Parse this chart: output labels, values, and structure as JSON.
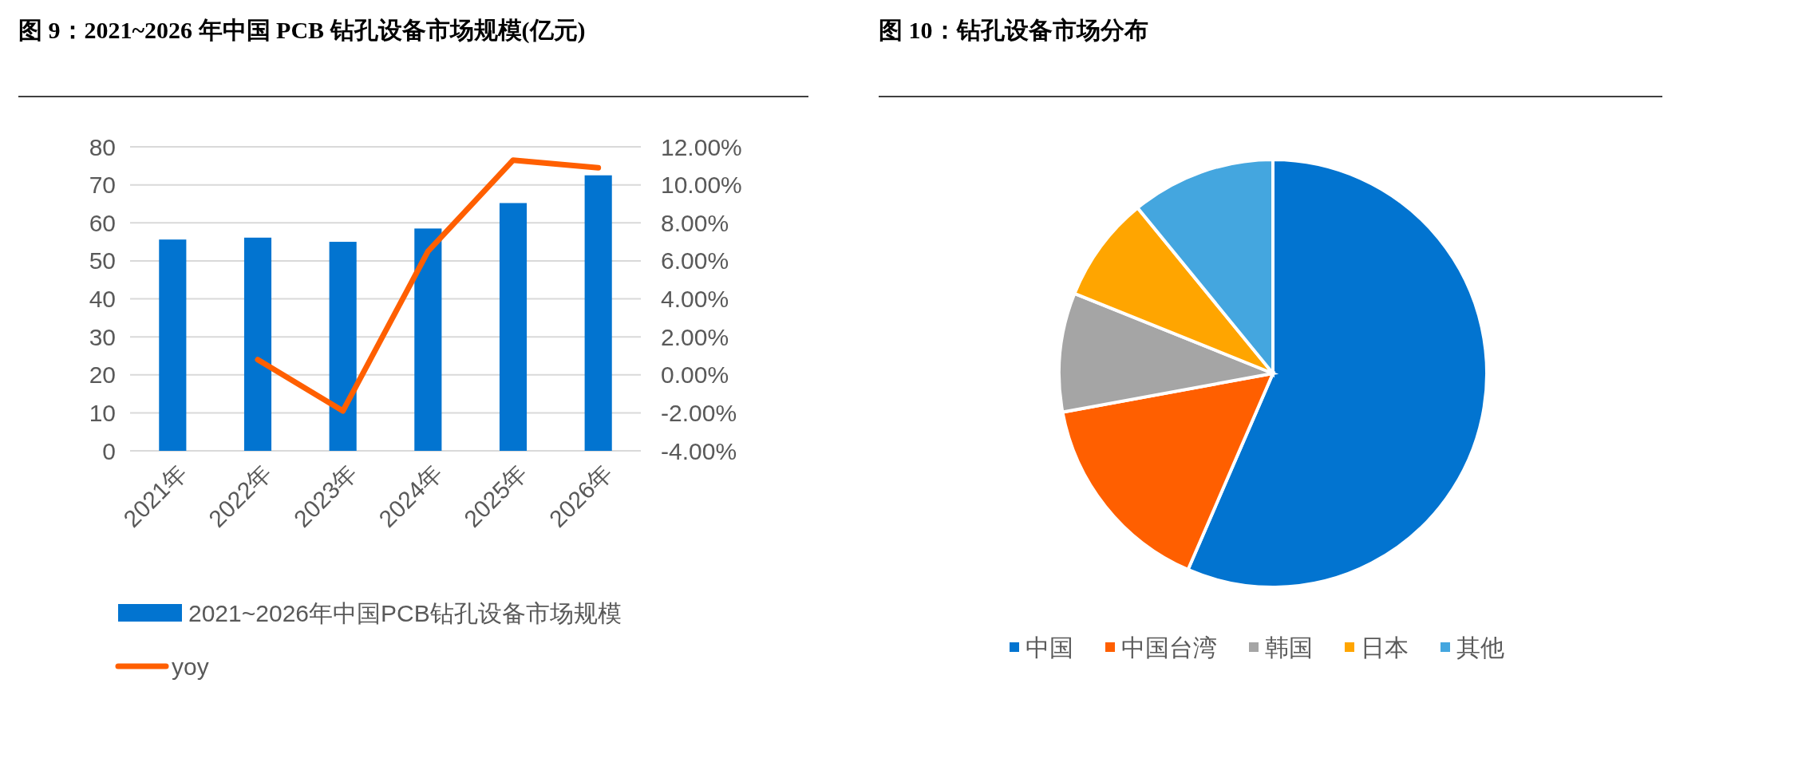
{
  "chart_data": [
    {
      "type": "bar",
      "title": "图 9：2021~2026 年中国 PCB 钻孔设备市场规模(亿元)",
      "categories": [
        "2021年",
        "2022年",
        "2023年",
        "2024年",
        "2025年",
        "2026年"
      ],
      "series": [
        {
          "name": "2021~2026年中国PCB钻孔设备市场规模",
          "color": "#0274d0",
          "values": [
            55.6,
            56.1,
            55.0,
            58.5,
            65.2,
            72.5
          ]
        },
        {
          "name": "yoy",
          "type": "line",
          "axis": "y2",
          "color": "#ff5f00",
          "values": [
            null,
            0.8,
            -1.9,
            6.5,
            11.3,
            10.9
          ]
        }
      ],
      "ylim": [
        0,
        80
      ],
      "yticks": [
        0,
        10,
        20,
        30,
        40,
        50,
        60,
        70,
        80
      ],
      "y2lim": [
        -4,
        12
      ],
      "y2ticks": [
        {
          "value": -4,
          "label": "-4.00%"
        },
        {
          "value": -2,
          "label": "-2.00%"
        },
        {
          "value": 0,
          "label": "0.00%"
        },
        {
          "value": 2,
          "label": "2.00%"
        },
        {
          "value": 4,
          "label": "4.00%"
        },
        {
          "value": 6,
          "label": "6.00%"
        },
        {
          "value": 8,
          "label": "8.00%"
        },
        {
          "value": 10,
          "label": "10.00%"
        },
        {
          "value": 12,
          "label": "12.00%"
        }
      ],
      "grid": "y",
      "legend": "bottom"
    },
    {
      "type": "pie",
      "title": "图 10：钻孔设备市场分布",
      "categories": [
        "中国",
        "中国台湾",
        "韩国",
        "日本",
        "其他"
      ],
      "values": [
        56.5,
        15.6,
        9,
        8,
        10.9
      ],
      "colors": [
        "#0274d0",
        "#ff5f00",
        "#a5a5a5",
        "#ffa500",
        "#44a6df"
      ],
      "legend": "bottom"
    }
  ]
}
